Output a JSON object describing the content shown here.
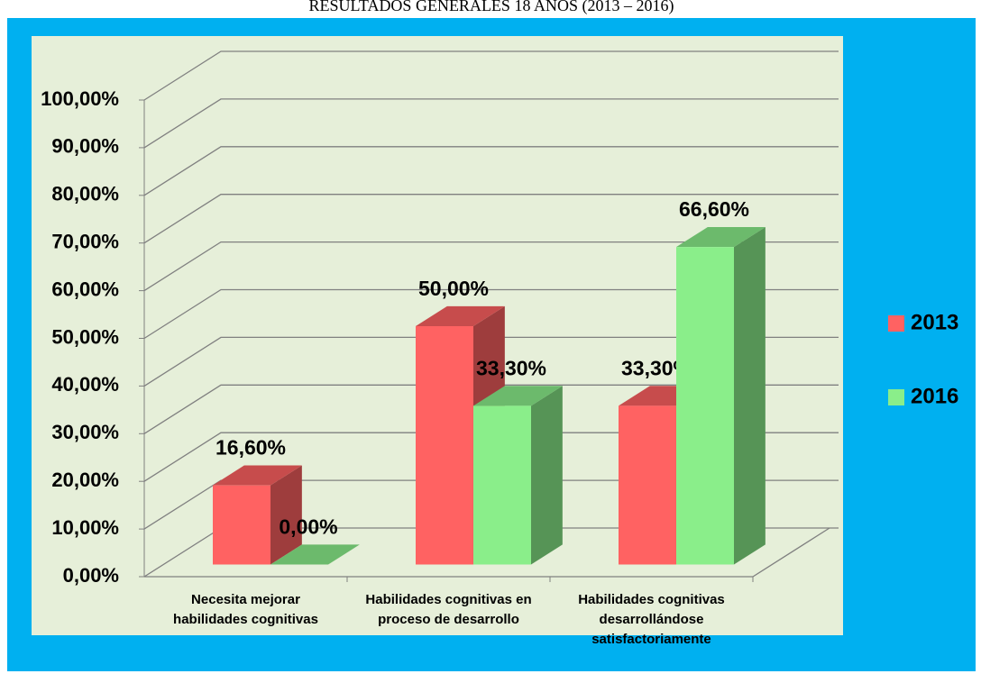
{
  "chart_data": {
    "type": "bar3d",
    "title": "RESULTADOS GENERALES 18 AÑOS (2013 – 2016)",
    "categories": [
      "Necesita mejorar habilidades cognitivas",
      "Habilidades cognitivas en proceso de desarrollo",
      "Habilidades cognitivas desarrollándose satisfactoriamente"
    ],
    "series": [
      {
        "name": "2013",
        "color": "#ff6262",
        "values": [
          16.6,
          50,
          33.3
        ],
        "value_labels": [
          "16,60%",
          "50,00%",
          "33,30%"
        ]
      },
      {
        "name": "2016",
        "color": "#8aee8a",
        "values": [
          0,
          33.3,
          66.6
        ],
        "value_labels": [
          "0,00%",
          "33,30%",
          "66,60%"
        ]
      }
    ],
    "ylim": [
      0,
      100
    ],
    "yticks": [
      {
        "value": 0,
        "label": "0,00%"
      },
      {
        "value": 10,
        "label": "10,00%"
      },
      {
        "value": 20,
        "label": "20,00%"
      },
      {
        "value": 30,
        "label": "30,00%"
      },
      {
        "value": 40,
        "label": "40,00%"
      },
      {
        "value": 50,
        "label": "50,00%"
      },
      {
        "value": 60,
        "label": "60,00%"
      },
      {
        "value": 70,
        "label": "70,00%"
      },
      {
        "value": 80,
        "label": "80,00%"
      },
      {
        "value": 90,
        "label": "90,00%"
      },
      {
        "value": 100,
        "label": "100,00%"
      }
    ],
    "grid": true,
    "legend": "right"
  }
}
